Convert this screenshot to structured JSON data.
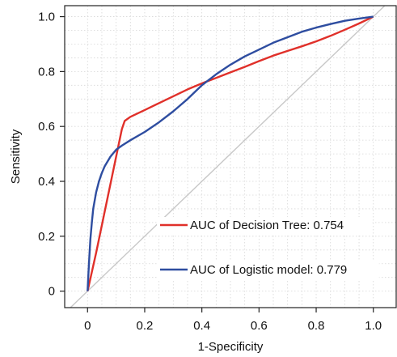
{
  "chart_data": {
    "type": "line",
    "title": "",
    "xlabel": "1-Specificity",
    "ylabel": "Sensitivity",
    "xlim": [
      -0.08,
      1.08
    ],
    "ylim": [
      -0.06,
      1.04
    ],
    "x_ticks": [
      0,
      0.2,
      0.4,
      0.6,
      0.8,
      1.0
    ],
    "x_tick_labels": [
      "0",
      "0.2",
      "0.4",
      "0.6",
      "0.8",
      "1.0"
    ],
    "y_ticks": [
      0,
      0.2,
      0.4,
      0.6,
      0.8,
      1.0
    ],
    "y_tick_labels": [
      "0",
      "0.2",
      "0.4",
      "0.6",
      "0.8",
      "1.0"
    ],
    "grid": true,
    "legend_position": "bottom-right",
    "reference_line": {
      "x": [
        0,
        1
      ],
      "y": [
        0,
        1
      ],
      "color": "#c8c8c8"
    },
    "series": [
      {
        "name": "AUC of Decision Tree: 0.754",
        "color": "#e0302a",
        "x": [
          0,
          0.03,
          0.06,
          0.09,
          0.12,
          0.13,
          0.15,
          0.2,
          0.25,
          0.3,
          0.35,
          0.4,
          0.45,
          0.5,
          0.55,
          0.6,
          0.65,
          0.7,
          0.75,
          0.8,
          0.85,
          0.9,
          0.95,
          1.0
        ],
        "y": [
          0,
          0.14,
          0.29,
          0.44,
          0.59,
          0.62,
          0.635,
          0.66,
          0.685,
          0.71,
          0.735,
          0.757,
          0.777,
          0.797,
          0.817,
          0.838,
          0.858,
          0.875,
          0.892,
          0.91,
          0.93,
          0.952,
          0.975,
          1.0
        ]
      },
      {
        "name": "AUC of Logistic model: 0.779",
        "color": "#2e4da0",
        "x": [
          0,
          0.003,
          0.006,
          0.01,
          0.015,
          0.02,
          0.03,
          0.04,
          0.05,
          0.06,
          0.08,
          0.1,
          0.12,
          0.15,
          0.2,
          0.25,
          0.3,
          0.35,
          0.4,
          0.45,
          0.5,
          0.55,
          0.6,
          0.65,
          0.7,
          0.75,
          0.8,
          0.85,
          0.9,
          0.95,
          1.0
        ],
        "y": [
          0,
          0.06,
          0.12,
          0.19,
          0.25,
          0.3,
          0.36,
          0.4,
          0.43,
          0.455,
          0.49,
          0.515,
          0.53,
          0.55,
          0.58,
          0.615,
          0.655,
          0.7,
          0.75,
          0.79,
          0.825,
          0.855,
          0.88,
          0.905,
          0.925,
          0.945,
          0.96,
          0.973,
          0.985,
          0.993,
          1.0
        ]
      }
    ]
  }
}
